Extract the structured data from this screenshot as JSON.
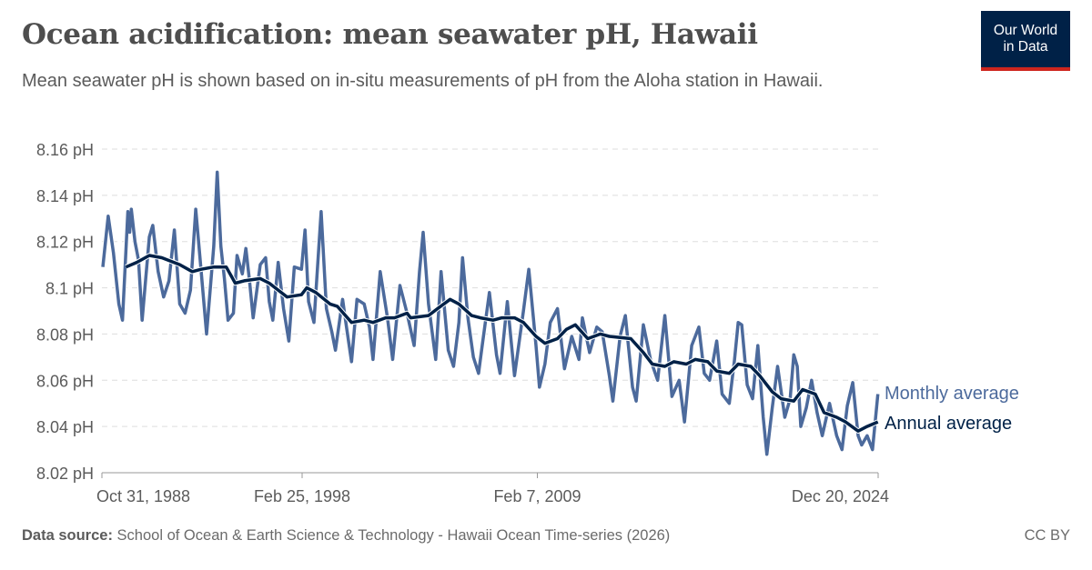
{
  "header": {
    "title": "Ocean acidification: mean seawater pH, Hawaii",
    "subtitle": "Mean seawater pH is shown based on in-situ measurements of pH from the Aloha station in Hawaii.",
    "logo_text": "Our World in Data"
  },
  "footer": {
    "source_label": "Data source:",
    "source_text": "School of Ocean & Earth Science & Technology - Hawaii Ocean Time-series (2026)",
    "license": "CC BY"
  },
  "colors": {
    "monthly": "#4c6a9c",
    "annual": "#002147",
    "grid": "#dddddd",
    "text": "#5b5b5b"
  },
  "chart_data": {
    "type": "line",
    "title": "Ocean acidification: mean seawater pH, Hawaii",
    "xlabel": "",
    "ylabel": "",
    "ylim": [
      8.02,
      8.16
    ],
    "xlim": [
      "1988-10-31",
      "2024-12-20"
    ],
    "y_ticks": [
      8.02,
      8.04,
      8.06,
      8.08,
      8.1,
      8.12,
      8.14,
      8.16
    ],
    "y_tick_labels": [
      "8.02 pH",
      "8.04 pH",
      "8.06 pH",
      "8.08 pH",
      "8.1 pH",
      "8.12 pH",
      "8.14 pH",
      "8.16 pH"
    ],
    "x_ticks": [
      "1988-10-31",
      "1998-02-25",
      "2009-02-07",
      "2024-12-20"
    ],
    "x_tick_labels": [
      "Oct 31, 1988",
      "Feb 25, 1998",
      "Feb 7, 2009",
      "Dec 20, 2024"
    ],
    "grid": "horizontal dashed",
    "legend": "right, inline labels",
    "series": [
      {
        "name": "Monthly average",
        "points": [
          [
            "1988-11",
            8.109
          ],
          [
            "1989-02",
            8.131
          ],
          [
            "1989-05",
            8.115
          ],
          [
            "1989-08",
            8.093
          ],
          [
            "1989-10",
            8.086
          ],
          [
            "1990-01",
            8.133
          ],
          [
            "1990-02",
            8.124
          ],
          [
            "1990-03",
            8.134
          ],
          [
            "1990-05",
            8.12
          ],
          [
            "1990-07",
            8.112
          ],
          [
            "1990-09",
            8.086
          ],
          [
            "1991-01",
            8.122
          ],
          [
            "1991-03",
            8.127
          ],
          [
            "1991-06",
            8.107
          ],
          [
            "1991-09",
            8.096
          ],
          [
            "1991-12",
            8.103
          ],
          [
            "1992-03",
            8.125
          ],
          [
            "1992-06",
            8.093
          ],
          [
            "1992-09",
            8.089
          ],
          [
            "1992-12",
            8.099
          ],
          [
            "1993-03",
            8.134
          ],
          [
            "1993-06",
            8.107
          ],
          [
            "1993-09",
            8.08
          ],
          [
            "1994-01",
            8.118
          ],
          [
            "1994-03",
            8.15
          ],
          [
            "1994-05",
            8.118
          ],
          [
            "1994-07",
            8.104
          ],
          [
            "1994-09",
            8.086
          ],
          [
            "1994-12",
            8.089
          ],
          [
            "1995-02",
            8.114
          ],
          [
            "1995-05",
            8.106
          ],
          [
            "1995-07",
            8.117
          ],
          [
            "1995-09",
            8.103
          ],
          [
            "1995-11",
            8.087
          ],
          [
            "1996-03",
            8.11
          ],
          [
            "1996-06",
            8.113
          ],
          [
            "1996-08",
            8.094
          ],
          [
            "1996-10",
            8.086
          ],
          [
            "1997-01",
            8.111
          ],
          [
            "1997-04",
            8.091
          ],
          [
            "1997-07",
            8.077
          ],
          [
            "1997-10",
            8.109
          ],
          [
            "1998-02",
            8.108
          ],
          [
            "1998-04",
            8.125
          ],
          [
            "1998-06",
            8.094
          ],
          [
            "1998-09",
            8.085
          ],
          [
            "1999-01",
            8.133
          ],
          [
            "1999-04",
            8.091
          ],
          [
            "1999-07",
            8.081
          ],
          [
            "1999-09",
            8.073
          ],
          [
            "2000-01",
            8.095
          ],
          [
            "2000-03",
            8.084
          ],
          [
            "2000-06",
            8.068
          ],
          [
            "2000-09",
            8.095
          ],
          [
            "2001-01",
            8.093
          ],
          [
            "2001-04",
            8.083
          ],
          [
            "2001-06",
            8.069
          ],
          [
            "2001-10",
            8.107
          ],
          [
            "2002-02",
            8.087
          ],
          [
            "2002-05",
            8.069
          ],
          [
            "2002-09",
            8.101
          ],
          [
            "2003-01",
            8.089
          ],
          [
            "2003-05",
            8.075
          ],
          [
            "2003-08",
            8.107
          ],
          [
            "2003-10",
            8.124
          ],
          [
            "2004-01",
            8.093
          ],
          [
            "2004-05",
            8.069
          ],
          [
            "2004-08",
            8.107
          ],
          [
            "2004-12",
            8.073
          ],
          [
            "2005-03",
            8.066
          ],
          [
            "2005-06",
            8.085
          ],
          [
            "2005-08",
            8.113
          ],
          [
            "2005-11",
            8.087
          ],
          [
            "2006-02",
            8.07
          ],
          [
            "2006-05",
            8.063
          ],
          [
            "2006-07",
            8.075
          ],
          [
            "2006-11",
            8.098
          ],
          [
            "2007-03",
            8.071
          ],
          [
            "2007-05",
            8.063
          ],
          [
            "2007-09",
            8.094
          ],
          [
            "2008-01",
            8.062
          ],
          [
            "2008-06",
            8.09
          ],
          [
            "2008-09",
            8.108
          ],
          [
            "2009-01",
            8.075
          ],
          [
            "2009-03",
            8.057
          ],
          [
            "2009-06",
            8.067
          ],
          [
            "2009-09",
            8.085
          ],
          [
            "2010-01",
            8.091
          ],
          [
            "2010-05",
            8.065
          ],
          [
            "2010-09",
            8.079
          ],
          [
            "2011-01",
            8.069
          ],
          [
            "2011-03",
            8.087
          ],
          [
            "2011-07",
            8.072
          ],
          [
            "2011-11",
            8.083
          ],
          [
            "2012-02",
            8.081
          ],
          [
            "2012-06",
            8.062
          ],
          [
            "2012-08",
            8.051
          ],
          [
            "2012-12",
            8.079
          ],
          [
            "2013-03",
            8.088
          ],
          [
            "2013-07",
            8.057
          ],
          [
            "2013-09",
            8.051
          ],
          [
            "2014-01",
            8.084
          ],
          [
            "2014-05",
            8.069
          ],
          [
            "2014-09",
            8.06
          ],
          [
            "2015-01",
            8.088
          ],
          [
            "2015-05",
            8.053
          ],
          [
            "2015-09",
            8.06
          ],
          [
            "2015-12",
            8.042
          ],
          [
            "2016-04",
            8.075
          ],
          [
            "2016-08",
            8.083
          ],
          [
            "2016-11",
            8.063
          ],
          [
            "2017-02",
            8.06
          ],
          [
            "2017-06",
            8.077
          ],
          [
            "2017-09",
            8.054
          ],
          [
            "2018-01",
            8.05
          ],
          [
            "2018-04",
            8.069
          ],
          [
            "2018-06",
            8.085
          ],
          [
            "2018-08",
            8.084
          ],
          [
            "2018-11",
            8.058
          ],
          [
            "2019-02",
            8.052
          ],
          [
            "2019-05",
            8.075
          ],
          [
            "2019-08",
            8.044
          ],
          [
            "2019-10",
            8.028
          ],
          [
            "2020-01",
            8.048
          ],
          [
            "2020-04",
            8.066
          ],
          [
            "2020-08",
            8.044
          ],
          [
            "2020-11",
            8.052
          ],
          [
            "2021-01",
            8.071
          ],
          [
            "2021-03",
            8.066
          ],
          [
            "2021-05",
            8.04
          ],
          [
            "2021-08",
            8.048
          ],
          [
            "2021-11",
            8.06
          ],
          [
            "2022-02",
            8.046
          ],
          [
            "2022-05",
            8.036
          ],
          [
            "2022-09",
            8.05
          ],
          [
            "2023-01",
            8.036
          ],
          [
            "2023-04",
            8.03
          ],
          [
            "2023-07",
            8.049
          ],
          [
            "2023-10",
            8.059
          ],
          [
            "2024-01",
            8.036
          ],
          [
            "2024-03",
            8.032
          ],
          [
            "2024-06",
            8.036
          ],
          [
            "2024-09",
            8.03
          ],
          [
            "2024-12",
            8.054
          ]
        ]
      },
      {
        "name": "Annual average",
        "points": [
          [
            "1989-12",
            8.109
          ],
          [
            "1990-06",
            8.111
          ],
          [
            "1991-01",
            8.114
          ],
          [
            "1991-08",
            8.113
          ],
          [
            "1992-06",
            8.11
          ],
          [
            "1993-01",
            8.107
          ],
          [
            "1993-06",
            8.108
          ],
          [
            "1994-01",
            8.109
          ],
          [
            "1994-08",
            8.109
          ],
          [
            "1995-01",
            8.102
          ],
          [
            "1995-06",
            8.103
          ],
          [
            "1996-03",
            8.104
          ],
          [
            "1996-08",
            8.102
          ],
          [
            "1997-06",
            8.096
          ],
          [
            "1998-02",
            8.097
          ],
          [
            "1998-05",
            8.1
          ],
          [
            "1998-10",
            8.098
          ],
          [
            "1999-06",
            8.093
          ],
          [
            "1999-10",
            8.092
          ],
          [
            "2000-06",
            8.085
          ],
          [
            "2001-01",
            8.086
          ],
          [
            "2001-06",
            8.085
          ],
          [
            "2002-01",
            8.087
          ],
          [
            "2002-06",
            8.087
          ],
          [
            "2003-01",
            8.089
          ],
          [
            "2003-03",
            8.087
          ],
          [
            "2004-01",
            8.088
          ],
          [
            "2004-06",
            8.091
          ],
          [
            "2005-01",
            8.095
          ],
          [
            "2005-06",
            8.093
          ],
          [
            "2006-01",
            8.088
          ],
          [
            "2006-06",
            8.087
          ],
          [
            "2007-01",
            8.086
          ],
          [
            "2007-06",
            8.087
          ],
          [
            "2008-01",
            8.087
          ],
          [
            "2008-06",
            8.085
          ],
          [
            "2009-01",
            8.079
          ],
          [
            "2009-06",
            8.076
          ],
          [
            "2010-01",
            8.078
          ],
          [
            "2010-06",
            8.082
          ],
          [
            "2010-11",
            8.084
          ],
          [
            "2011-06",
            8.078
          ],
          [
            "2012-01",
            8.08
          ],
          [
            "2012-06",
            8.079
          ],
          [
            "2013-06",
            8.078
          ],
          [
            "2014-01",
            8.072
          ],
          [
            "2014-06",
            8.067
          ],
          [
            "2015-01",
            8.066
          ],
          [
            "2015-06",
            8.068
          ],
          [
            "2016-01",
            8.067
          ],
          [
            "2016-06",
            8.069
          ],
          [
            "2017-01",
            8.068
          ],
          [
            "2017-06",
            8.064
          ],
          [
            "2018-01",
            8.063
          ],
          [
            "2018-06",
            8.067
          ],
          [
            "2019-01",
            8.066
          ],
          [
            "2019-06",
            8.062
          ],
          [
            "2020-01",
            8.055
          ],
          [
            "2020-06",
            8.052
          ],
          [
            "2021-01",
            8.051
          ],
          [
            "2021-06",
            8.056
          ],
          [
            "2022-01",
            8.054
          ],
          [
            "2022-06",
            8.046
          ],
          [
            "2023-01",
            8.044
          ],
          [
            "2023-06",
            8.042
          ],
          [
            "2024-01",
            8.038
          ],
          [
            "2024-06",
            8.04
          ],
          [
            "2024-12",
            8.042
          ]
        ]
      }
    ]
  }
}
